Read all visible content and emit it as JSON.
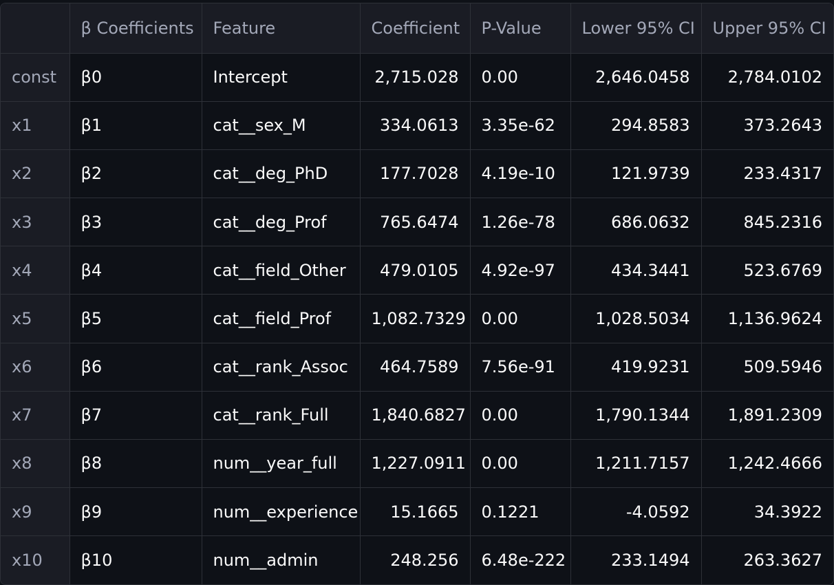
{
  "table": {
    "columns": [
      "",
      "β Coefficients",
      "Feature",
      "Coefficient",
      "P-Value",
      "Lower 95% CI",
      "Upper 95% CI"
    ],
    "rows": [
      {
        "index": "const",
        "beta": "β0",
        "feature": "Intercept",
        "coefficient": "2,715.028",
        "pvalue": "0.00",
        "lower": "2,646.0458",
        "upper": "2,784.0102"
      },
      {
        "index": "x1",
        "beta": "β1",
        "feature": "cat__sex_M",
        "coefficient": "334.0613",
        "pvalue": "3.35e-62",
        "lower": "294.8583",
        "upper": "373.2643"
      },
      {
        "index": "x2",
        "beta": "β2",
        "feature": "cat__deg_PhD",
        "coefficient": "177.7028",
        "pvalue": "4.19e-10",
        "lower": "121.9739",
        "upper": "233.4317"
      },
      {
        "index": "x3",
        "beta": "β3",
        "feature": "cat__deg_Prof",
        "coefficient": "765.6474",
        "pvalue": "1.26e-78",
        "lower": "686.0632",
        "upper": "845.2316"
      },
      {
        "index": "x4",
        "beta": "β4",
        "feature": "cat__field_Other",
        "coefficient": "479.0105",
        "pvalue": "4.92e-97",
        "lower": "434.3441",
        "upper": "523.6769"
      },
      {
        "index": "x5",
        "beta": "β5",
        "feature": "cat__field_Prof",
        "coefficient": "1,082.7329",
        "pvalue": "0.00",
        "lower": "1,028.5034",
        "upper": "1,136.9624"
      },
      {
        "index": "x6",
        "beta": "β6",
        "feature": "cat__rank_Assoc",
        "coefficient": "464.7589",
        "pvalue": "7.56e-91",
        "lower": "419.9231",
        "upper": "509.5946"
      },
      {
        "index": "x7",
        "beta": "β7",
        "feature": "cat__rank_Full",
        "coefficient": "1,840.6827",
        "pvalue": "0.00",
        "lower": "1,790.1344",
        "upper": "1,891.2309"
      },
      {
        "index": "x8",
        "beta": "β8",
        "feature": "num__year_full",
        "coefficient": "1,227.0911",
        "pvalue": "0.00",
        "lower": "1,211.7157",
        "upper": "1,242.4666"
      },
      {
        "index": "x9",
        "beta": "β9",
        "feature": "num__experience",
        "coefficient": "15.1665",
        "pvalue": "0.1221",
        "lower": "-4.0592",
        "upper": "34.3922"
      },
      {
        "index": "x10",
        "beta": "β10",
        "feature": "num__admin",
        "coefficient": "248.256",
        "pvalue": "6.48e-222",
        "lower": "233.1494",
        "upper": "263.3627"
      }
    ]
  }
}
